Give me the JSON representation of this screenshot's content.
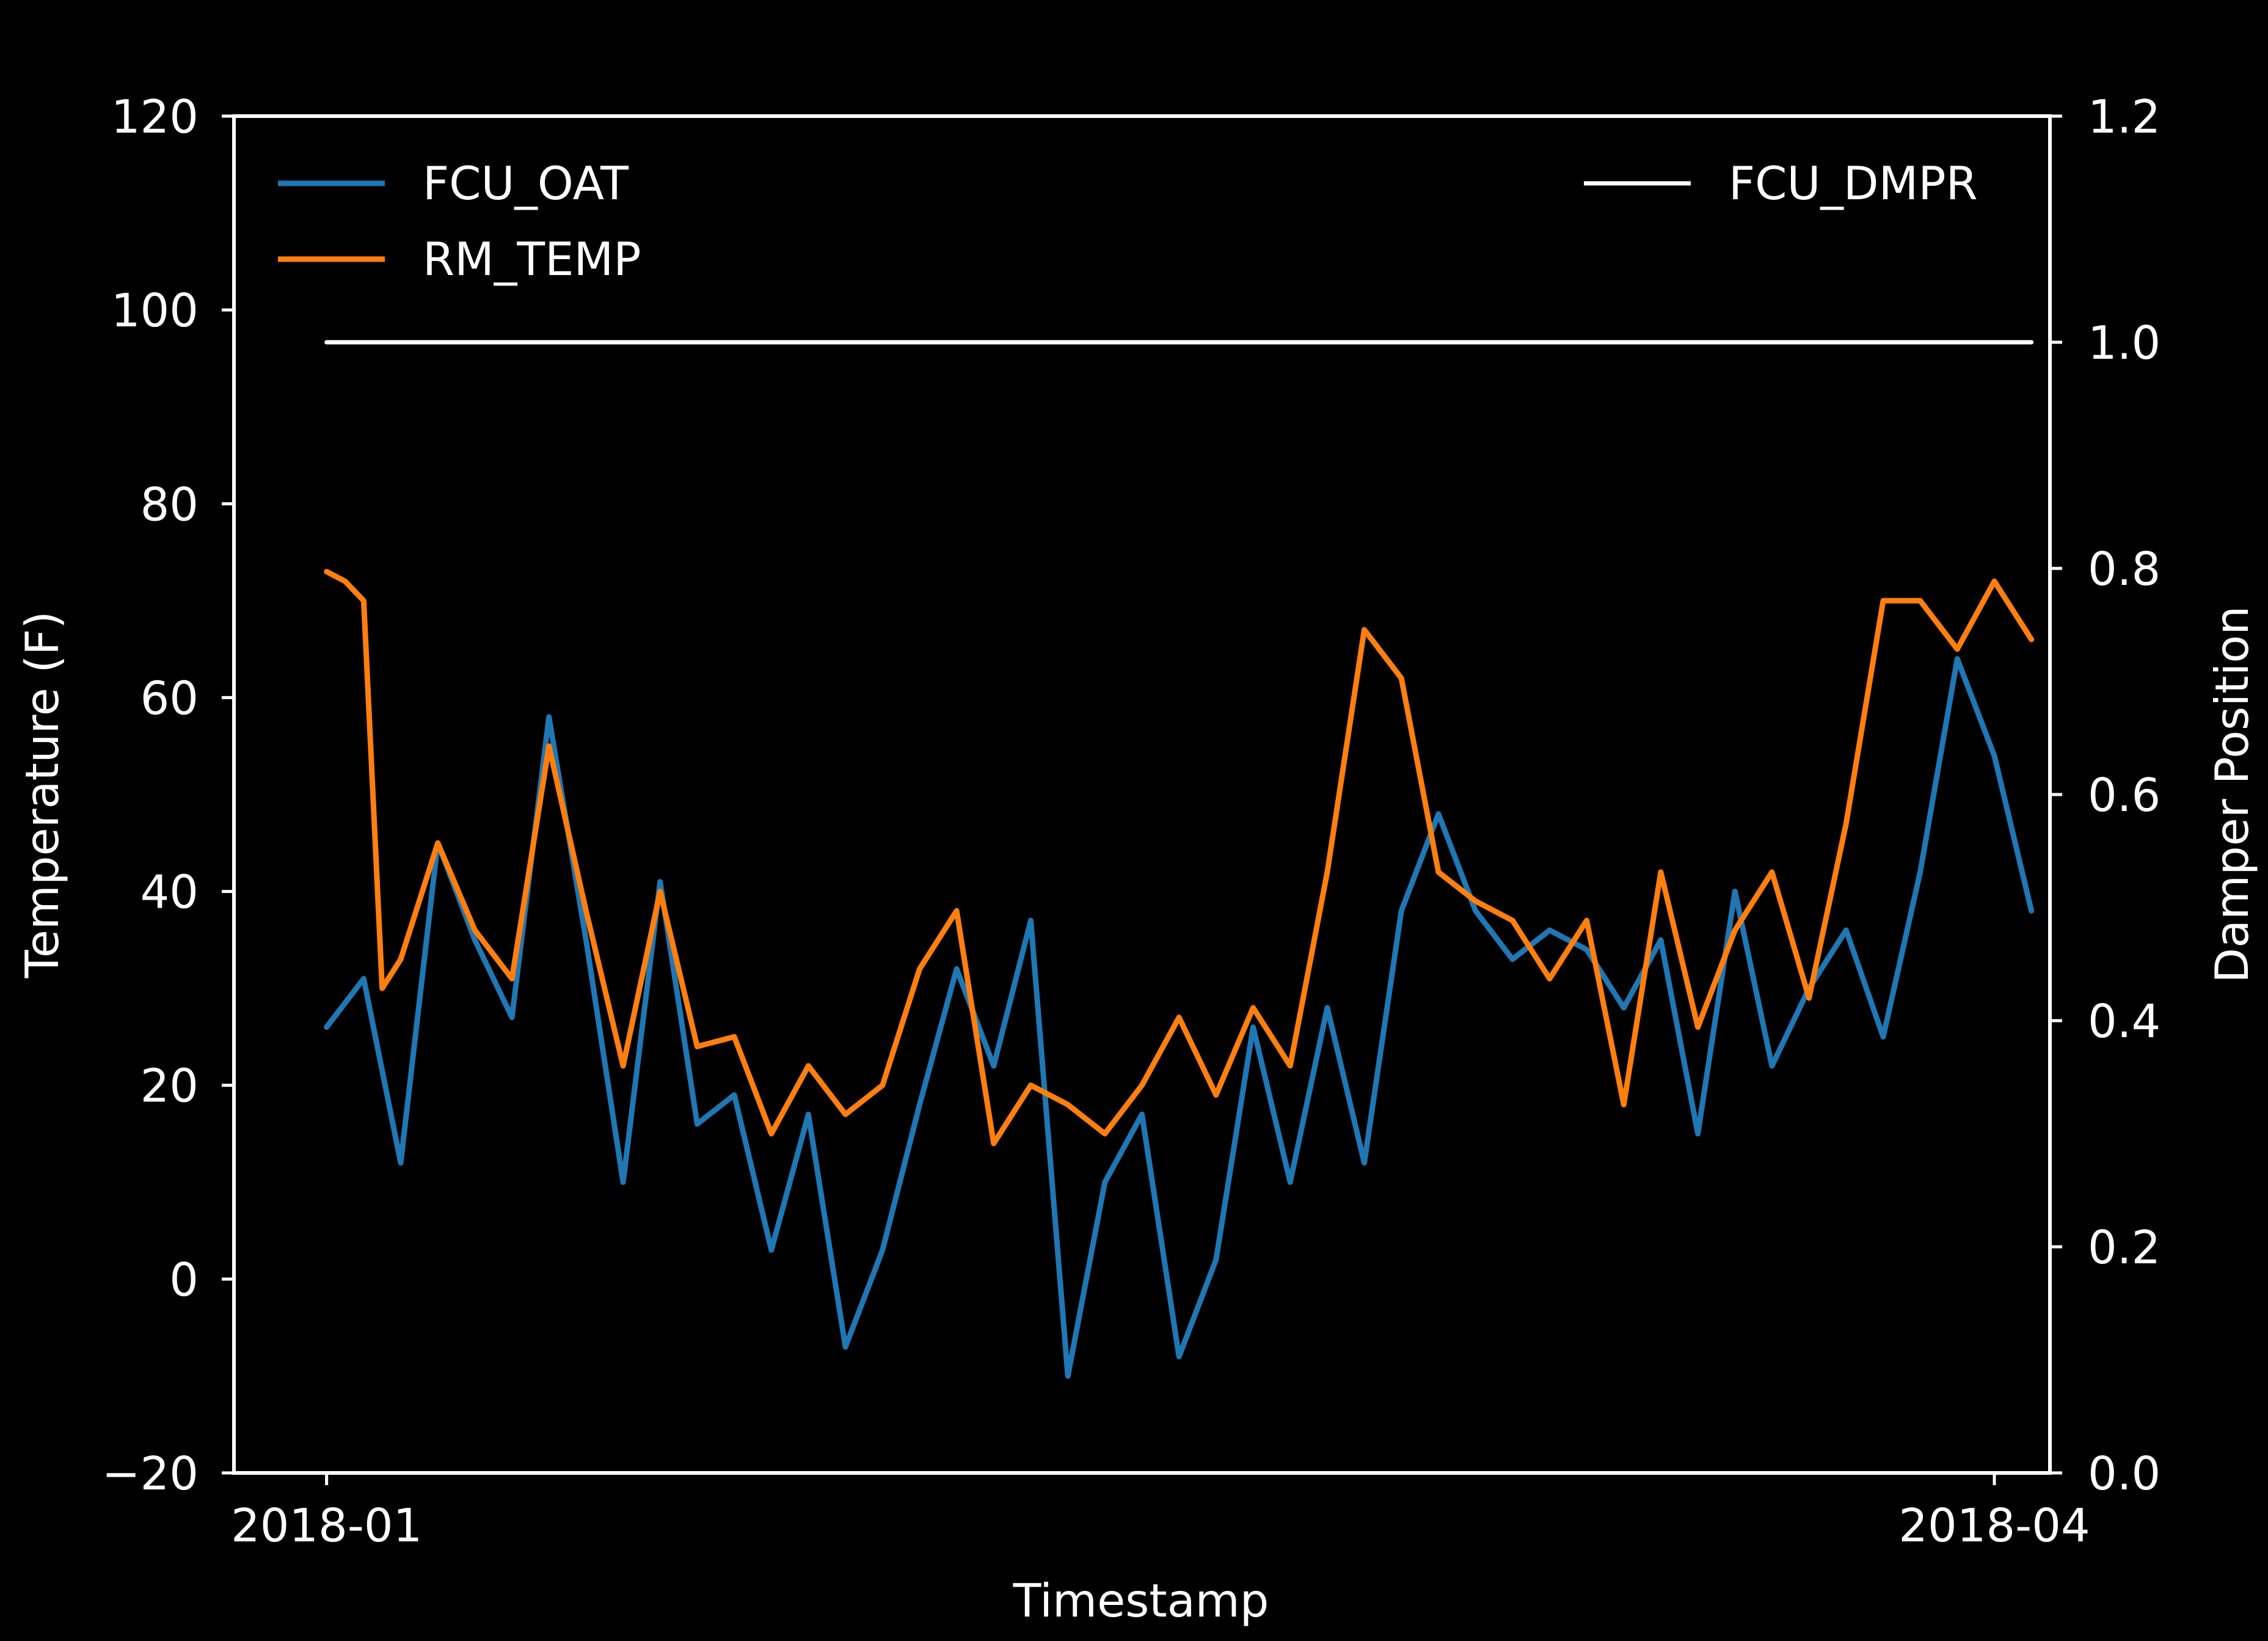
{
  "chart_data": {
    "type": "line",
    "background": "#000000",
    "x_axis": {
      "label": "Timestamp",
      "tick_labels": [
        "2018-01",
        "2018-04"
      ],
      "tick_dates": [
        "2018-01-01",
        "2018-04-01"
      ],
      "range": [
        "2017-12-27",
        "2018-04-04"
      ]
    },
    "y_axis_left": {
      "label": "Temperature (F)",
      "range": [
        -20,
        120
      ],
      "ticks": [
        -20,
        0,
        20,
        40,
        60,
        80,
        100,
        120
      ],
      "tick_labels": [
        "−20",
        "0",
        "20",
        "40",
        "60",
        "80",
        "100",
        "120"
      ]
    },
    "y_axis_right": {
      "label": "Damper Position",
      "range": [
        0.0,
        1.2
      ],
      "ticks": [
        0.0,
        0.2,
        0.4,
        0.6,
        0.8,
        1.0,
        1.2
      ],
      "tick_labels": [
        "0.0",
        "0.2",
        "0.4",
        "0.6",
        "0.8",
        "1.0",
        "1.2"
      ]
    },
    "grid": false,
    "legends": [
      {
        "placement": "upper-left",
        "entries": [
          "FCU_OAT",
          "RM_TEMP"
        ]
      },
      {
        "placement": "upper-right",
        "entries": [
          "FCU_DMPR"
        ]
      }
    ],
    "series": [
      {
        "name": "FCU_OAT",
        "axis": "left",
        "color": "#1f77b4",
        "x": [
          "2018-01-01",
          "2018-01-03",
          "2018-01-05",
          "2018-01-07",
          "2018-01-09",
          "2018-01-11",
          "2018-01-13",
          "2018-01-15",
          "2018-01-17",
          "2018-01-19",
          "2018-01-21",
          "2018-01-23",
          "2018-01-25",
          "2018-01-27",
          "2018-01-29",
          "2018-01-31",
          "2018-02-02",
          "2018-02-04",
          "2018-02-06",
          "2018-02-08",
          "2018-02-10",
          "2018-02-12",
          "2018-02-14",
          "2018-02-16",
          "2018-02-18",
          "2018-02-20",
          "2018-02-22",
          "2018-02-24",
          "2018-02-26",
          "2018-02-28",
          "2018-03-02",
          "2018-03-04",
          "2018-03-06",
          "2018-03-08",
          "2018-03-10",
          "2018-03-12",
          "2018-03-14",
          "2018-03-16",
          "2018-03-18",
          "2018-03-20",
          "2018-03-22",
          "2018-03-24",
          "2018-03-26",
          "2018-03-28",
          "2018-03-30",
          "2018-04-01",
          "2018-04-03"
        ],
        "y": [
          26,
          31,
          12,
          45,
          35,
          27,
          58,
          35,
          10,
          41,
          16,
          19,
          3,
          17,
          -7,
          3,
          18,
          32,
          22,
          37,
          -10,
          10,
          17,
          -8,
          2,
          26,
          10,
          28,
          12,
          38,
          48,
          38,
          33,
          36,
          34,
          28,
          35,
          15,
          40,
          22,
          30,
          36,
          25,
          42,
          64,
          54,
          38
        ]
      },
      {
        "name": "RM_TEMP",
        "axis": "left",
        "color": "#ff7f0e",
        "x": [
          "2018-01-01",
          "2018-01-02",
          "2018-01-03",
          "2018-01-04",
          "2018-01-05",
          "2018-01-07",
          "2018-01-09",
          "2018-01-11",
          "2018-01-13",
          "2018-01-15",
          "2018-01-17",
          "2018-01-19",
          "2018-01-21",
          "2018-01-23",
          "2018-01-25",
          "2018-01-27",
          "2018-01-29",
          "2018-01-31",
          "2018-02-02",
          "2018-02-04",
          "2018-02-06",
          "2018-02-08",
          "2018-02-10",
          "2018-02-12",
          "2018-02-14",
          "2018-02-16",
          "2018-02-18",
          "2018-02-20",
          "2018-02-22",
          "2018-02-24",
          "2018-02-26",
          "2018-02-28",
          "2018-03-02",
          "2018-03-04",
          "2018-03-06",
          "2018-03-08",
          "2018-03-10",
          "2018-03-12",
          "2018-03-14",
          "2018-03-16",
          "2018-03-18",
          "2018-03-20",
          "2018-03-22",
          "2018-03-24",
          "2018-03-26",
          "2018-03-28",
          "2018-03-30",
          "2018-04-01",
          "2018-04-03"
        ],
        "y": [
          73,
          72,
          70,
          30,
          33,
          45,
          36,
          31,
          55,
          38,
          22,
          40,
          24,
          25,
          15,
          22,
          17,
          20,
          32,
          38,
          14,
          20,
          18,
          15,
          20,
          27,
          19,
          28,
          22,
          42,
          67,
          62,
          42,
          39,
          37,
          31,
          37,
          18,
          42,
          26,
          36,
          42,
          29,
          47,
          70,
          70,
          65,
          72,
          66
        ]
      },
      {
        "name": "FCU_DMPR",
        "axis": "right",
        "color": "#ffffff",
        "x": [
          "2018-01-01",
          "2018-04-03"
        ],
        "y": [
          1.0,
          1.0
        ]
      }
    ]
  }
}
